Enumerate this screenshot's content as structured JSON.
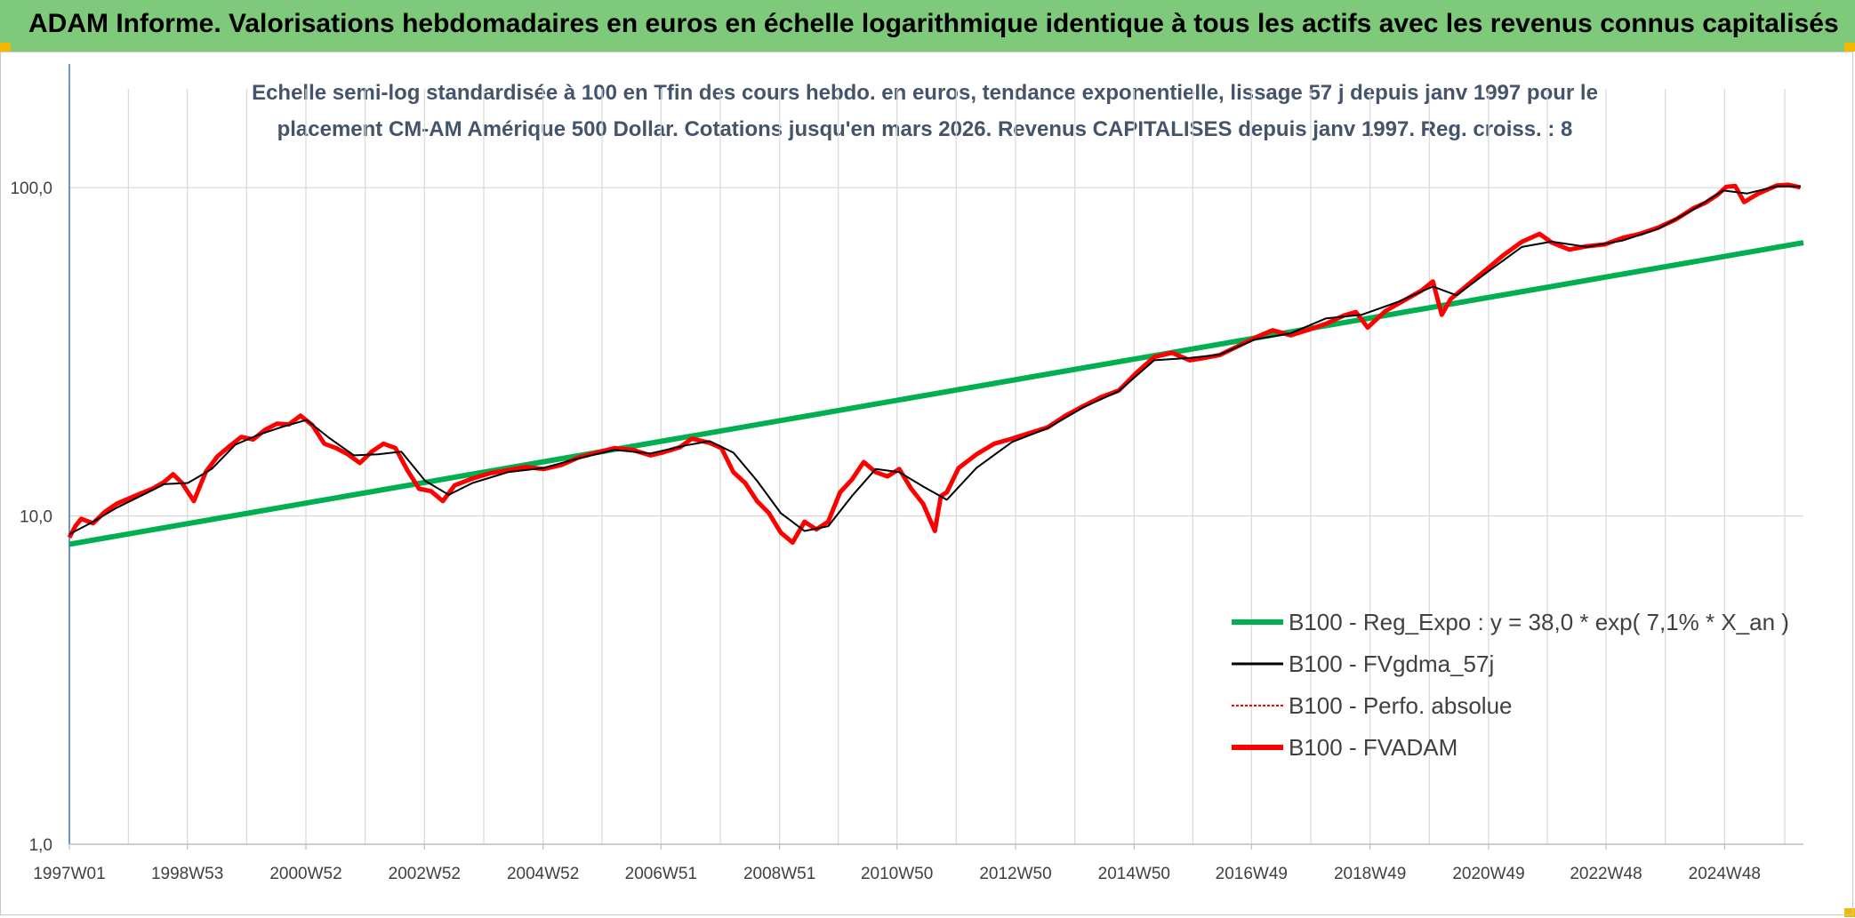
{
  "header": {
    "title": "ADAM Informe. Valorisations hebdomadaires en euros en échelle logarithmique identique à tous les actifs avec les revenus connus capitalisés"
  },
  "colors": {
    "header_bg": "#7fc97a",
    "corner": "#f5b800",
    "regression": "#00b050",
    "moving_average": "#000000",
    "absolute_perf": "#ff0000",
    "fvadam": "#ff0000",
    "grid": "#d9d9d9",
    "subtitle": "#44546a"
  },
  "chart_data": {
    "type": "line",
    "subtitle_lines": [
      "Echelle semi-log standardisée à 100 en Tfin des cours hebdo. en euros, tendance exponentielle, lissage 57 j depuis janv 1997 pour le",
      "placement CM-AM Amérique 500 Dollar. Cotations jusqu'en mars 2026. Revenus CAPITALISES depuis janv 1997. Reg. croiss. : 8"
    ],
    "y_scale": "log",
    "ylim": [
      1,
      200
    ],
    "y_ticks": [
      "1,0",
      "10,0",
      "100,0"
    ],
    "y_tick_values": [
      1,
      10,
      100
    ],
    "x_range": [
      1997.0,
      2026.25
    ],
    "x_ticks": [
      "1997W01",
      "1998W53",
      "2000W52",
      "2002W52",
      "2004W52",
      "2006W51",
      "2008W51",
      "2010W50",
      "2012W50",
      "2014W50",
      "2016W49",
      "2018W49",
      "2020W49",
      "2022W48",
      "2024W48"
    ],
    "x_tick_years": [
      1997.0,
      1998.99,
      2000.99,
      2002.99,
      2004.99,
      2006.98,
      2008.98,
      2010.96,
      2012.96,
      2014.96,
      2016.94,
      2018.94,
      2020.94,
      2022.92,
      2024.92
    ],
    "grid": true,
    "legend_position": "bottom-right",
    "legend": [
      "B100 - Reg_Expo : y = 38,0 * exp( 7,1% *  X_an )",
      "B100 - FVgdma_57j",
      "B100 - Perfo. absolue",
      "B100 - FVADAM"
    ],
    "series": [
      {
        "name": "B100 - Reg_Expo : y = 38,0 * exp( 7,1% *  X_an )",
        "style": "regression",
        "x": [
          1997.0,
          2026.25
        ],
        "y": [
          8.2,
          68.0
        ]
      },
      {
        "name": "B100 - FVADAM",
        "style": "price",
        "x": [
          1997.0,
          1997.1,
          1997.2,
          1997.4,
          1997.6,
          1997.8,
          1998.0,
          1998.2,
          1998.4,
          1998.6,
          1998.75,
          1998.9,
          1999.1,
          1999.3,
          1999.5,
          1999.7,
          1999.9,
          2000.1,
          2000.3,
          2000.5,
          2000.7,
          2000.9,
          2001.1,
          2001.3,
          2001.5,
          2001.7,
          2001.9,
          2002.1,
          2002.3,
          2002.5,
          2002.7,
          2002.9,
          2003.1,
          2003.3,
          2003.5,
          2003.8,
          2004.1,
          2004.4,
          2004.7,
          2005.0,
          2005.3,
          2005.6,
          2005.9,
          2006.2,
          2006.5,
          2006.8,
          2007.0,
          2007.3,
          2007.5,
          2007.8,
          2008.0,
          2008.2,
          2008.4,
          2008.6,
          2008.8,
          2009.0,
          2009.2,
          2009.4,
          2009.6,
          2009.8,
          2010.0,
          2010.2,
          2010.4,
          2010.6,
          2010.8,
          2011.0,
          2011.2,
          2011.4,
          2011.6,
          2011.7,
          2011.8,
          2012.0,
          2012.3,
          2012.6,
          2012.9,
          2013.2,
          2013.5,
          2013.8,
          2014.1,
          2014.4,
          2014.7,
          2015.0,
          2015.3,
          2015.6,
          2015.9,
          2016.1,
          2016.4,
          2016.7,
          2017.0,
          2017.3,
          2017.6,
          2017.9,
          2018.2,
          2018.5,
          2018.7,
          2018.9,
          2019.2,
          2019.5,
          2019.8,
          2020.0,
          2020.15,
          2020.3,
          2020.6,
          2020.9,
          2021.2,
          2021.5,
          2021.8,
          2022.0,
          2022.3,
          2022.6,
          2022.9,
          2023.2,
          2023.5,
          2023.8,
          2024.1,
          2024.4,
          2024.6,
          2024.8,
          2024.95,
          2025.1,
          2025.25,
          2025.5,
          2025.8,
          2026.0,
          2026.2
        ],
        "y": [
          8.6,
          9.3,
          9.8,
          9.5,
          10.3,
          10.9,
          11.3,
          11.7,
          12.1,
          12.7,
          13.4,
          12.6,
          11.1,
          13.6,
          15.2,
          16.3,
          17.4,
          17.1,
          18.3,
          19.1,
          19.0,
          20.2,
          18.9,
          16.6,
          16.1,
          15.4,
          14.5,
          15.7,
          16.6,
          16.1,
          13.8,
          12.1,
          11.9,
          11.1,
          12.4,
          13.0,
          13.5,
          13.8,
          14.1,
          13.9,
          14.3,
          15.1,
          15.6,
          16.1,
          15.9,
          15.3,
          15.6,
          16.2,
          17.2,
          16.7,
          16.1,
          13.6,
          12.6,
          11.1,
          10.2,
          8.9,
          8.3,
          9.6,
          9.1,
          9.6,
          11.8,
          12.9,
          14.6,
          13.6,
          13.2,
          13.9,
          12.1,
          10.9,
          9.0,
          11.5,
          11.8,
          14.0,
          15.4,
          16.6,
          17.2,
          17.9,
          18.6,
          20.2,
          21.6,
          23.0,
          24.1,
          27.3,
          30.5,
          31.4,
          29.8,
          30.2,
          30.9,
          32.8,
          34.9,
          36.8,
          35.5,
          36.9,
          38.5,
          40.8,
          41.8,
          37.5,
          42.1,
          45.2,
          48.5,
          51.8,
          41.0,
          45.8,
          50.8,
          56.3,
          62.5,
          68.4,
          72.3,
          68.1,
          64.8,
          66.3,
          67.2,
          70.3,
          72.4,
          75.6,
          80.1,
          86.7,
          90.0,
          95.1,
          100.6,
          101.2,
          90.4,
          96.2,
          101.5,
          102.1,
          100.2
        ]
      },
      {
        "name": "B100 - FVgdma_57j",
        "style": "smooth",
        "x": [
          1997.0,
          1997.4,
          1997.8,
          1998.2,
          1998.6,
          1999.0,
          1999.4,
          1999.8,
          2000.2,
          2000.6,
          2001.0,
          2001.4,
          2001.8,
          2002.2,
          2002.6,
          2003.0,
          2003.4,
          2003.8,
          2004.4,
          2005.0,
          2005.6,
          2006.2,
          2006.8,
          2007.4,
          2007.8,
          2008.2,
          2008.6,
          2009.0,
          2009.4,
          2009.8,
          2010.2,
          2010.6,
          2011.0,
          2011.4,
          2011.8,
          2012.3,
          2012.9,
          2013.5,
          2014.1,
          2014.7,
          2015.3,
          2015.9,
          2016.4,
          2017.0,
          2017.6,
          2018.2,
          2018.8,
          2019.4,
          2020.0,
          2020.4,
          2020.9,
          2021.5,
          2022.0,
          2022.6,
          2023.2,
          2023.8,
          2024.4,
          2024.9,
          2025.3,
          2025.8,
          2026.2
        ],
        "y": [
          8.8,
          9.6,
          10.6,
          11.5,
          12.5,
          12.6,
          13.9,
          16.5,
          17.7,
          18.7,
          19.6,
          17.2,
          15.3,
          15.4,
          15.7,
          12.8,
          11.6,
          12.6,
          13.6,
          14.0,
          15.0,
          15.9,
          15.5,
          16.4,
          16.9,
          15.6,
          12.8,
          10.2,
          9.0,
          9.3,
          11.5,
          13.9,
          13.6,
          12.3,
          11.2,
          14.0,
          16.8,
          18.5,
          21.4,
          24.0,
          29.8,
          30.3,
          31.0,
          34.5,
          36.0,
          40.0,
          41.0,
          44.8,
          50.0,
          47.0,
          55.0,
          66.0,
          68.5,
          66.0,
          69.0,
          75.0,
          86.0,
          98.0,
          96.0,
          101.0,
          100.8
        ]
      }
    ]
  }
}
